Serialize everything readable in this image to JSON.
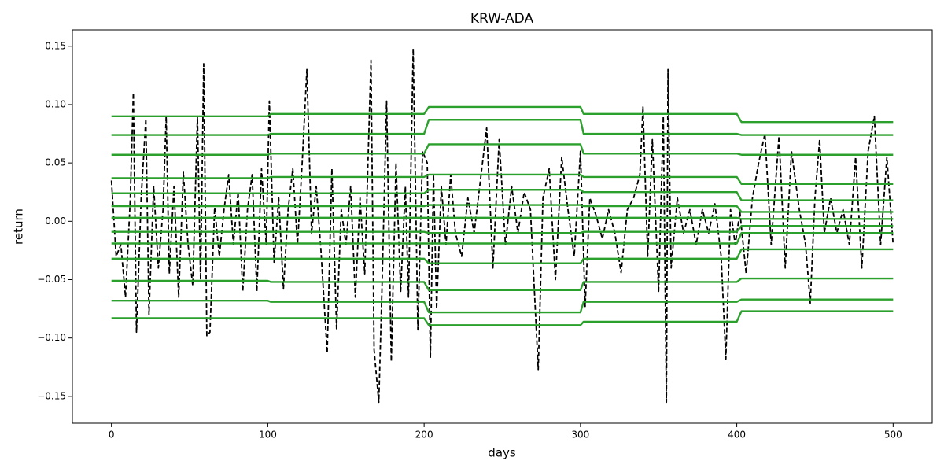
{
  "chart_data": {
    "type": "line",
    "title": "KRW-ADA",
    "xlabel": "days",
    "ylabel": "return",
    "xlim": [
      -25,
      525
    ],
    "ylim": [
      -0.173,
      0.164
    ],
    "xticks": [
      0,
      100,
      200,
      300,
      400,
      500
    ],
    "yticks": [
      {
        "value": -0.15,
        "label": "−0.15"
      },
      {
        "value": -0.1,
        "label": "−0.10"
      },
      {
        "value": -0.05,
        "label": "−0.05"
      },
      {
        "value": 0,
        "label": "0.00"
      },
      0.05,
      {
        "value": 0.1,
        "label": "0.10"
      },
      0.15
    ],
    "grid": false,
    "series": [
      {
        "color": "#000000",
        "dashed": true,
        "x": [
          0,
          3,
          6,
          9,
          12,
          14,
          16,
          19,
          22,
          24,
          27,
          30,
          33,
          35,
          37,
          40,
          43,
          46,
          49,
          52,
          55,
          57,
          59,
          61,
          63,
          66,
          69,
          72,
          75,
          78,
          81,
          84,
          87,
          90,
          93,
          96,
          99,
          101,
          104,
          107,
          110,
          113,
          116,
          119,
          122,
          125,
          128,
          131,
          134,
          138,
          141,
          144,
          147,
          150,
          153,
          156,
          159,
          162,
          166,
          168,
          171,
          173,
          176,
          179,
          182,
          185,
          188,
          190,
          193,
          196,
          199,
          202,
          204,
          206,
          208,
          211,
          214,
          217,
          220,
          224,
          228,
          232,
          236,
          240,
          244,
          248,
          252,
          256,
          260,
          264,
          268,
          273,
          276,
          280,
          284,
          288,
          292,
          296,
          300,
          303,
          306,
          310,
          314,
          318,
          322,
          326,
          330,
          334,
          338,
          340,
          343,
          346,
          350,
          353,
          355,
          356,
          358,
          362,
          366,
          370,
          374,
          378,
          382,
          386,
          390,
          393,
          396,
          399,
          402,
          406,
          410,
          414,
          418,
          422,
          427,
          431,
          435,
          440,
          444,
          447,
          450,
          453,
          456,
          460,
          464,
          468,
          472,
          476,
          480,
          484,
          488,
          492,
          496,
          500
        ],
        "values": [
          0.035,
          -0.03,
          -0.02,
          -0.065,
          0.018,
          0.11,
          -0.095,
          0.02,
          0.088,
          -0.08,
          0.03,
          -0.04,
          0.01,
          0.09,
          -0.045,
          0.03,
          -0.065,
          0.042,
          -0.02,
          -0.055,
          0.09,
          -0.05,
          0.135,
          -0.098,
          -0.095,
          0.012,
          -0.03,
          0.01,
          0.04,
          -0.02,
          0.025,
          -0.06,
          0.01,
          0.04,
          -0.06,
          0.045,
          -0.02,
          0.103,
          -0.035,
          0.02,
          -0.058,
          0.01,
          0.045,
          -0.02,
          0.05,
          0.13,
          -0.01,
          0.03,
          -0.025,
          -0.113,
          0.045,
          -0.092,
          0.01,
          -0.02,
          0.03,
          -0.065,
          0.02,
          -0.045,
          0.138,
          -0.11,
          -0.155,
          -0.06,
          0.103,
          -0.12,
          0.05,
          -0.06,
          0.03,
          -0.065,
          0.148,
          -0.093,
          0.06,
          0.05,
          -0.117,
          0.04,
          -0.075,
          0.03,
          -0.02,
          0.04,
          -0.01,
          -0.03,
          0.02,
          -0.01,
          0.035,
          0.08,
          -0.04,
          0.07,
          -0.02,
          0.03,
          -0.01,
          0.025,
          0.01,
          -0.127,
          0.02,
          0.045,
          -0.05,
          0.055,
          0.01,
          -0.03,
          0.06,
          -0.073,
          0.02,
          0.005,
          -0.015,
          0.01,
          -0.01,
          -0.044,
          0.01,
          0.02,
          0.04,
          0.098,
          -0.03,
          0.07,
          -0.06,
          0.09,
          -0.155,
          0.13,
          -0.04,
          0.02,
          -0.01,
          0.01,
          -0.02,
          0.01,
          -0.01,
          0.015,
          -0.03,
          -0.118,
          0.01,
          -0.02,
          0.008,
          -0.045,
          0.02,
          0.05,
          0.075,
          -0.02,
          0.073,
          -0.04,
          0.06,
          0.01,
          -0.02,
          -0.07,
          0.02,
          0.07,
          -0.01,
          0.02,
          -0.01,
          0.01,
          -0.02,
          0.055,
          -0.04,
          0.06,
          0.09,
          -0.02,
          0.055,
          -0.02
        ]
      },
      {
        "color": "#2ca02c",
        "x": [
          0,
          50,
          100,
          102,
          150,
          200,
          203,
          250,
          300,
          302,
          350,
          400,
          403,
          450,
          500
        ],
        "values": [
          0.09,
          0.09,
          0.09,
          0.092,
          0.092,
          0.092,
          0.098,
          0.098,
          0.098,
          0.092,
          0.092,
          0.092,
          0.085,
          0.085,
          0.085
        ]
      },
      {
        "color": "#2ca02c",
        "x": [
          0,
          50,
          100,
          102,
          150,
          200,
          203,
          250,
          300,
          302,
          350,
          400,
          403,
          450,
          500
        ],
        "values": [
          0.074,
          0.074,
          0.074,
          0.075,
          0.075,
          0.075,
          0.087,
          0.087,
          0.087,
          0.075,
          0.075,
          0.075,
          0.074,
          0.074,
          0.074
        ]
      },
      {
        "color": "#2ca02c",
        "x": [
          0,
          50,
          100,
          102,
          150,
          200,
          203,
          250,
          300,
          302,
          350,
          400,
          403,
          450,
          500
        ],
        "values": [
          0.057,
          0.057,
          0.057,
          0.058,
          0.058,
          0.058,
          0.066,
          0.066,
          0.066,
          0.058,
          0.058,
          0.058,
          0.057,
          0.057,
          0.057
        ]
      },
      {
        "color": "#2ca02c",
        "x": [
          0,
          50,
          100,
          102,
          150,
          200,
          203,
          250,
          300,
          302,
          350,
          400,
          403,
          450,
          500
        ],
        "values": [
          0.037,
          0.037,
          0.037,
          0.038,
          0.038,
          0.038,
          0.04,
          0.04,
          0.04,
          0.038,
          0.038,
          0.038,
          0.032,
          0.032,
          0.032
        ]
      },
      {
        "color": "#2ca02c",
        "x": [
          0,
          50,
          100,
          102,
          150,
          200,
          203,
          250,
          300,
          302,
          350,
          400,
          403,
          450,
          500
        ],
        "values": [
          0.024,
          0.024,
          0.024,
          0.024,
          0.024,
          0.024,
          0.027,
          0.027,
          0.027,
          0.025,
          0.025,
          0.025,
          0.018,
          0.018,
          0.018
        ]
      },
      {
        "color": "#2ca02c",
        "x": [
          0,
          50,
          100,
          102,
          150,
          200,
          203,
          250,
          300,
          302,
          350,
          400,
          403,
          450,
          500
        ],
        "values": [
          0.013,
          0.013,
          0.013,
          0.013,
          0.013,
          0.013,
          0.014,
          0.014,
          0.014,
          0.013,
          0.013,
          0.013,
          0.008,
          0.008,
          0.008
        ]
      },
      {
        "color": "#2ca02c",
        "x": [
          0,
          50,
          100,
          102,
          150,
          200,
          203,
          250,
          300,
          302,
          350,
          400,
          403,
          450,
          500
        ],
        "values": [
          0.003,
          0.003,
          0.003,
          0.003,
          0.003,
          0.003,
          0.003,
          0.003,
          0.003,
          0.003,
          0.003,
          0.003,
          0.002,
          0.002,
          0.002
        ]
      },
      {
        "color": "#2ca02c",
        "x": [
          0,
          50,
          100,
          102,
          150,
          200,
          203,
          250,
          300,
          302,
          350,
          400,
          403,
          450,
          500
        ],
        "values": [
          -0.009,
          -0.009,
          -0.009,
          -0.009,
          -0.009,
          -0.009,
          -0.01,
          -0.01,
          -0.01,
          -0.009,
          -0.009,
          -0.009,
          -0.004,
          -0.004,
          -0.004
        ]
      },
      {
        "color": "#2ca02c",
        "x": [
          0,
          50,
          100,
          102,
          150,
          200,
          203,
          250,
          300,
          302,
          350,
          400,
          403,
          450,
          500
        ],
        "values": [
          -0.019,
          -0.019,
          -0.019,
          -0.019,
          -0.019,
          -0.019,
          -0.019,
          -0.019,
          -0.019,
          -0.019,
          -0.019,
          -0.019,
          -0.01,
          -0.01,
          -0.01
        ]
      },
      {
        "color": "#2ca02c",
        "x": [
          0,
          50,
          100,
          102,
          150,
          200,
          203,
          250,
          300,
          302,
          350,
          400,
          403,
          450,
          500
        ],
        "values": [
          -0.032,
          -0.032,
          -0.032,
          -0.032,
          -0.032,
          -0.032,
          -0.036,
          -0.036,
          -0.036,
          -0.032,
          -0.032,
          -0.032,
          -0.024,
          -0.024,
          -0.024
        ]
      },
      {
        "color": "#2ca02c",
        "x": [
          0,
          50,
          100,
          102,
          150,
          200,
          203,
          250,
          300,
          302,
          350,
          400,
          403,
          450,
          500
        ],
        "values": [
          -0.051,
          -0.051,
          -0.051,
          -0.052,
          -0.052,
          -0.052,
          -0.059,
          -0.059,
          -0.059,
          -0.052,
          -0.052,
          -0.052,
          -0.049,
          -0.049,
          -0.049
        ]
      },
      {
        "color": "#2ca02c",
        "x": [
          0,
          50,
          100,
          102,
          150,
          200,
          203,
          250,
          300,
          302,
          350,
          400,
          403,
          450,
          500
        ],
        "values": [
          -0.068,
          -0.068,
          -0.068,
          -0.069,
          -0.069,
          -0.069,
          -0.078,
          -0.078,
          -0.078,
          -0.069,
          -0.069,
          -0.069,
          -0.067,
          -0.067,
          -0.067
        ]
      },
      {
        "color": "#2ca02c",
        "x": [
          0,
          50,
          100,
          102,
          150,
          200,
          203,
          250,
          300,
          302,
          350,
          400,
          403,
          450,
          500
        ],
        "values": [
          -0.083,
          -0.083,
          -0.083,
          -0.083,
          -0.083,
          -0.083,
          -0.089,
          -0.089,
          -0.089,
          -0.086,
          -0.086,
          -0.086,
          -0.077,
          -0.077,
          -0.077
        ]
      }
    ]
  }
}
